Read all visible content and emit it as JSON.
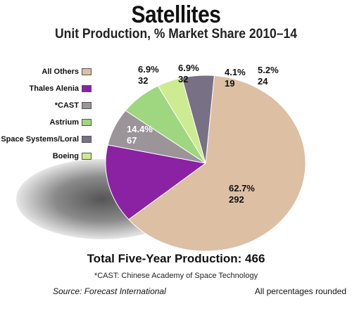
{
  "header": {
    "title": "Satellites",
    "subtitle": "Unit Production, % Market Share 2010–14"
  },
  "chart_data": {
    "type": "pie",
    "title": "Satellites",
    "subtitle": "Unit Production, % Market Share 2010–14",
    "total_label": "Total Five-Year Production: 466",
    "total": 466,
    "legend_placement": "left",
    "slices": [
      {
        "name": "All Others",
        "percent": 62.7,
        "percent_label": "62.7%",
        "units": 292,
        "units_label": "292",
        "color": "#ddbfa4"
      },
      {
        "name": "Thales Alenia",
        "percent": 14.4,
        "percent_label": "14.4%",
        "units": 67,
        "units_label": "67",
        "color": "#8b22a4"
      },
      {
        "name": "*CAST",
        "percent": 6.9,
        "percent_label": "6.9%",
        "units": 32,
        "units_label": "32",
        "color": "#9b9499"
      },
      {
        "name": "Astrium",
        "percent": 6.9,
        "percent_label": "6.9%",
        "units": 32,
        "units_label": "32",
        "color": "#9fd680"
      },
      {
        "name": "Space Systems/Loral",
        "percent": 5.2,
        "percent_label": "5.2%",
        "units": 24,
        "units_label": "24",
        "color": "#787085"
      },
      {
        "name": "Boeing",
        "percent": 4.1,
        "percent_label": "4.1%",
        "units": 19,
        "units_label": "19",
        "color": "#cdeb90"
      }
    ]
  },
  "footer": {
    "footnote": "*CAST: Chinese Academy of Space Technology",
    "source": "Source:  Forecast International",
    "rounding_note": "All percentages rounded"
  }
}
